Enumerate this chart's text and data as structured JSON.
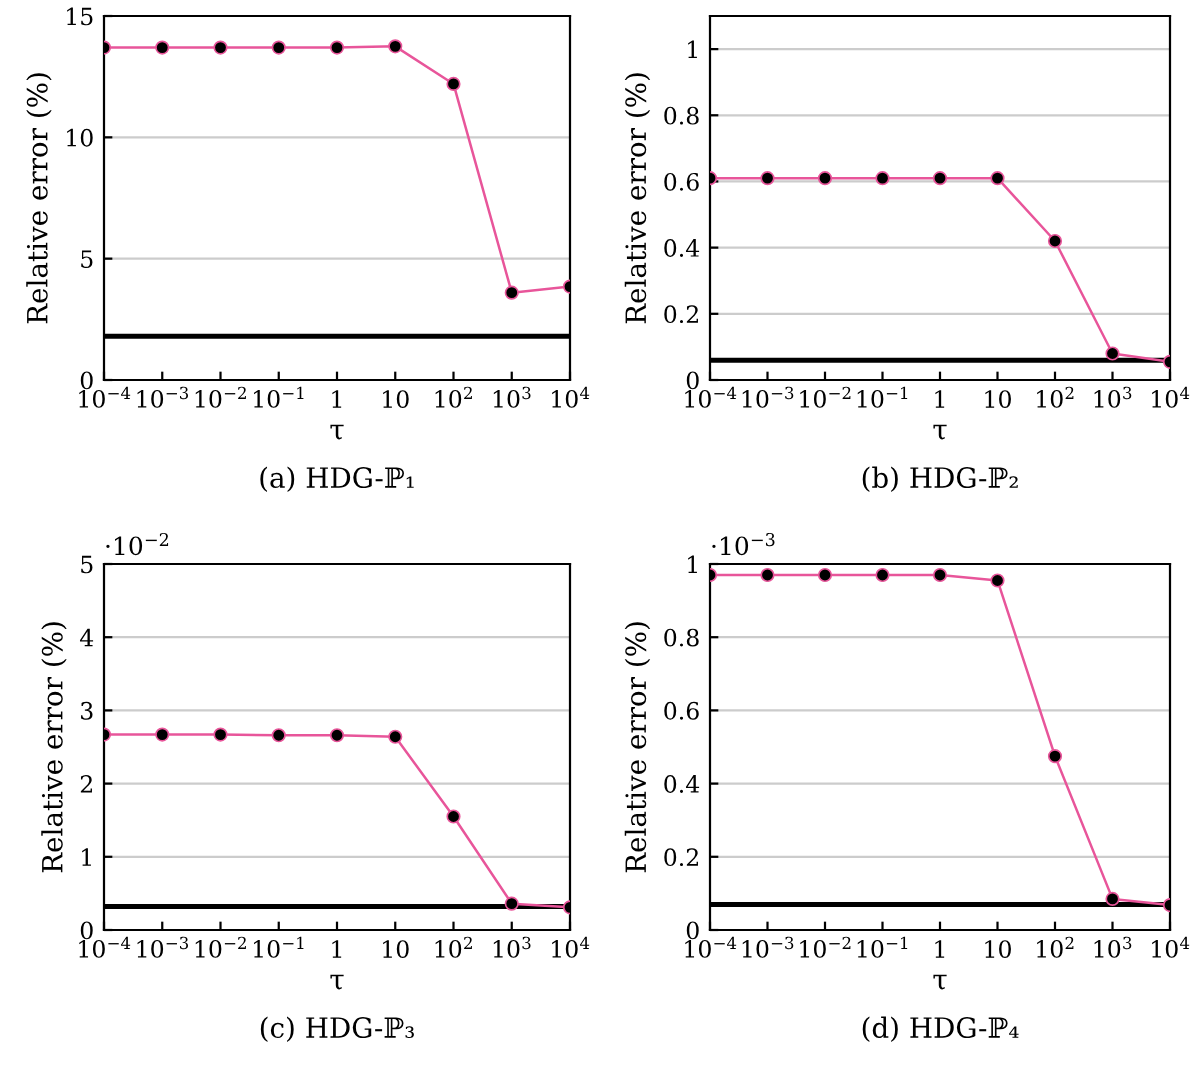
{
  "chart_data": [
    {
      "type": "line",
      "title": "(a) HDG-ℙ₁",
      "xlabel": "τ",
      "ylabel": "Relative error (%)",
      "x": [
        0.0001,
        0.001,
        0.01,
        0.1,
        1,
        10,
        100,
        1000,
        10000
      ],
      "log": "x",
      "xlim": [
        0.0001,
        10000
      ],
      "xticks": [
        {
          "value": 0.0001,
          "label": "10$^{−4}$"
        },
        {
          "value": 0.001,
          "label": "10$^{−3}$"
        },
        {
          "value": 0.01,
          "label": "10$^{−2}$"
        },
        {
          "value": 0.1,
          "label": "10$^{−1}$"
        },
        1,
        10,
        {
          "value": 100,
          "label": "10$^{2}$"
        },
        {
          "value": 1000,
          "label": "10$^{3}$"
        },
        {
          "value": 10000,
          "label": "10$^{4}$"
        }
      ],
      "ylim": [
        0,
        15
      ],
      "yticks": [
        0,
        5,
        10,
        15
      ],
      "grid": "y",
      "marker": "circle",
      "line_style": "solid",
      "series": [
        {
          "color": "#e8559a",
          "values": [
            13.7,
            13.7,
            13.7,
            13.7,
            13.7,
            13.75,
            12.2,
            3.6,
            3.85
          ]
        }
      ],
      "ref_lines": [
        {
          "axis": "y",
          "value": 1.8,
          "color": "#000000"
        }
      ]
    },
    {
      "type": "line",
      "title": "(b) HDG-ℙ₂",
      "xlabel": "τ",
      "ylabel": "Relative error (%)",
      "x": [
        0.0001,
        0.001,
        0.01,
        0.1,
        1,
        10,
        100,
        1000,
        10000
      ],
      "log": "x",
      "xlim": [
        0.0001,
        10000
      ],
      "xticks": [
        {
          "value": 0.0001,
          "label": "10$^{−4}$"
        },
        {
          "value": 0.001,
          "label": "10$^{−3}$"
        },
        {
          "value": 0.01,
          "label": "10$^{−2}$"
        },
        {
          "value": 0.1,
          "label": "10$^{−1}$"
        },
        1,
        10,
        {
          "value": 100,
          "label": "10$^{2}$"
        },
        {
          "value": 1000,
          "label": "10$^{3}$"
        },
        {
          "value": 10000,
          "label": "10$^{4}$"
        }
      ],
      "ylim": [
        0,
        1.1
      ],
      "yticks": [
        0,
        0.2,
        0.4,
        0.6,
        0.8,
        1
      ],
      "grid": "y",
      "marker": "circle",
      "line_style": "solid",
      "series": [
        {
          "color": "#e8559a",
          "values": [
            0.61,
            0.61,
            0.61,
            0.61,
            0.61,
            0.61,
            0.42,
            0.08,
            0.055
          ]
        }
      ],
      "ref_lines": [
        {
          "axis": "y",
          "value": 0.06,
          "color": "#000000"
        }
      ]
    },
    {
      "type": "line",
      "title": "(c) HDG-ℙ₃",
      "xlabel": "τ",
      "ylabel": "Relative error (%)",
      "annotations": [
        "·10$^{−2}$"
      ],
      "x": [
        0.0001,
        0.001,
        0.01,
        0.1,
        1,
        10,
        100,
        1000,
        10000
      ],
      "log": "x",
      "xlim": [
        0.0001,
        10000
      ],
      "xticks": [
        {
          "value": 0.0001,
          "label": "10$^{−4}$"
        },
        {
          "value": 0.001,
          "label": "10$^{−3}$"
        },
        {
          "value": 0.01,
          "label": "10$^{−2}$"
        },
        {
          "value": 0.1,
          "label": "10$^{−1}$"
        },
        1,
        10,
        {
          "value": 100,
          "label": "10$^{2}$"
        },
        {
          "value": 1000,
          "label": "10$^{3}$"
        },
        {
          "value": 10000,
          "label": "10$^{4}$"
        }
      ],
      "ylim": [
        0,
        5
      ],
      "yticks": [
        0,
        1,
        2,
        3,
        4,
        5
      ],
      "grid": "y",
      "marker": "circle",
      "line_style": "solid",
      "series": [
        {
          "color": "#e8559a",
          "values": [
            2.67,
            2.67,
            2.67,
            2.66,
            2.66,
            2.64,
            1.55,
            0.36,
            0.31
          ]
        }
      ],
      "ref_lines": [
        {
          "axis": "y",
          "value": 0.32,
          "color": "#000000"
        }
      ]
    },
    {
      "type": "line",
      "title": "(d) HDG-ℙ₄",
      "xlabel": "τ",
      "ylabel": "Relative error (%)",
      "annotations": [
        "·10$^{−3}$"
      ],
      "x": [
        0.0001,
        0.001,
        0.01,
        0.1,
        1,
        10,
        100,
        1000,
        10000
      ],
      "log": "x",
      "xlim": [
        0.0001,
        10000
      ],
      "xticks": [
        {
          "value": 0.0001,
          "label": "10$^{−4}$"
        },
        {
          "value": 0.001,
          "label": "10$^{−3}$"
        },
        {
          "value": 0.01,
          "label": "10$^{−2}$"
        },
        {
          "value": 0.1,
          "label": "10$^{−1}$"
        },
        1,
        10,
        {
          "value": 100,
          "label": "10$^{2}$"
        },
        {
          "value": 1000,
          "label": "10$^{3}$"
        },
        {
          "value": 10000,
          "label": "10$^{4}$"
        }
      ],
      "ylim": [
        0,
        1
      ],
      "yticks": [
        0,
        0.2,
        0.4,
        0.6,
        0.8,
        1
      ],
      "grid": "y",
      "marker": "circle",
      "line_style": "solid",
      "series": [
        {
          "color": "#e8559a",
          "values": [
            0.97,
            0.97,
            0.97,
            0.97,
            0.97,
            0.955,
            0.475,
            0.085,
            0.068
          ]
        }
      ],
      "ref_lines": [
        {
          "axis": "y",
          "value": 0.07,
          "color": "#000000"
        }
      ]
    }
  ]
}
